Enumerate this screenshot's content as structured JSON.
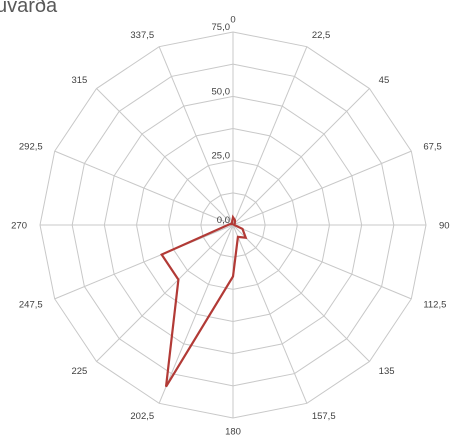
{
  "chart_data": {
    "type": "radar",
    "title": "uvarða",
    "categories": [
      "0",
      "22,5",
      "45",
      "67,5",
      "90",
      "112,5",
      "135",
      "157,5",
      "180",
      "202,5",
      "225",
      "247,5",
      "270",
      "292,5",
      "315",
      "337,5"
    ],
    "series": [
      {
        "color": "#b23a36",
        "values": [
          3,
          2,
          1,
          0.5,
          0.5,
          4,
          7,
          5,
          20,
          68,
          30,
          30,
          2,
          1,
          0.5,
          1
        ]
      }
    ],
    "r_ticks": [
      "0,0",
      "25,0",
      "50,0",
      "75,0"
    ],
    "r_range": [
      0,
      75
    ],
    "grid": true
  }
}
